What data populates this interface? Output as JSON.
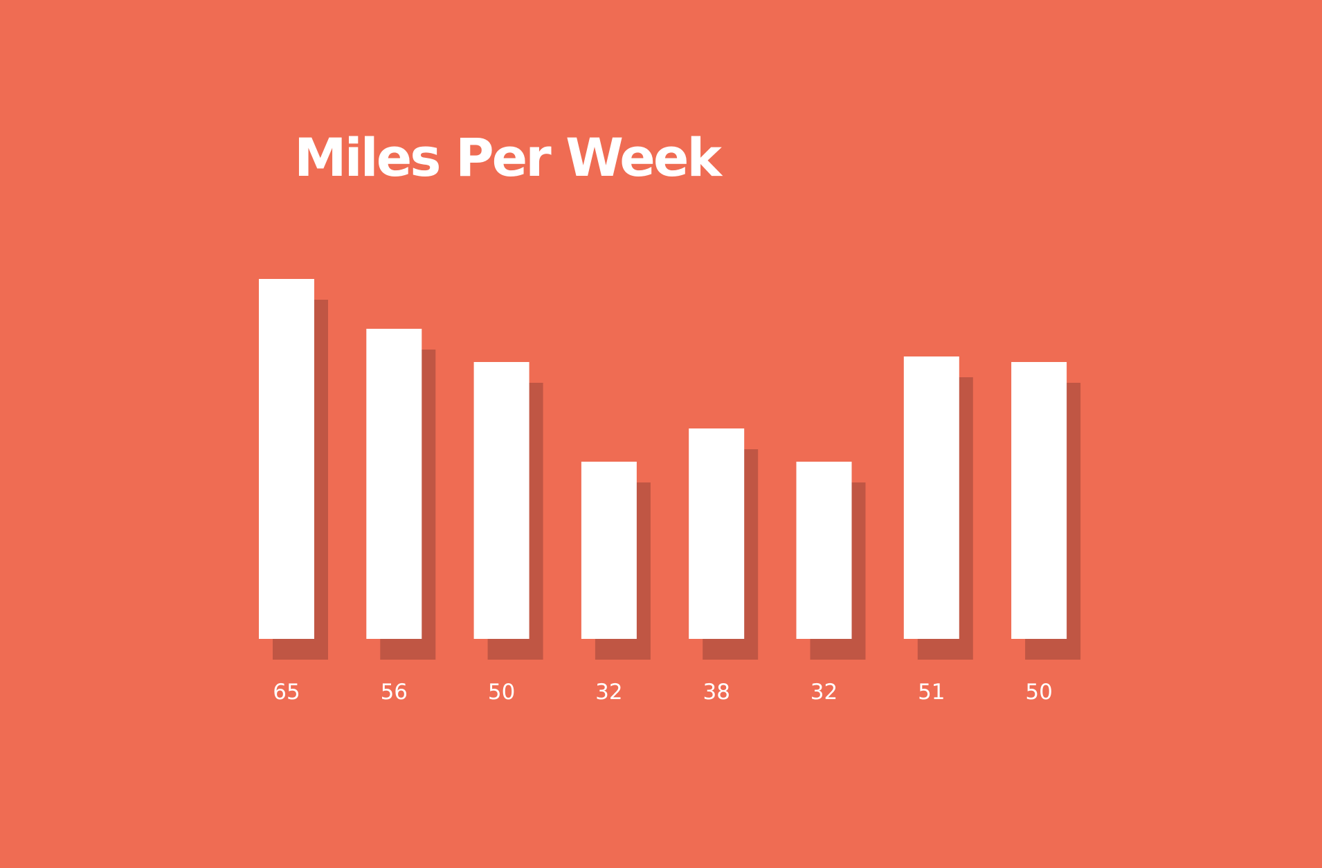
{
  "chart_data": {
    "type": "bar",
    "title": "Miles Per Week",
    "xlabel": "",
    "ylabel": "",
    "values": [
      65,
      56,
      50,
      32,
      38,
      32,
      51,
      50
    ],
    "data_labels": [
      "65",
      "56",
      "50",
      "32",
      "38",
      "32",
      "51",
      "50"
    ],
    "ylim": [
      0,
      65
    ],
    "grid": false,
    "legend": "none",
    "colors": {
      "background": "#EF6C53",
      "bar": "#FFFFFF",
      "bar_shadow": "#C05644",
      "label": "#FFFFFF"
    }
  }
}
